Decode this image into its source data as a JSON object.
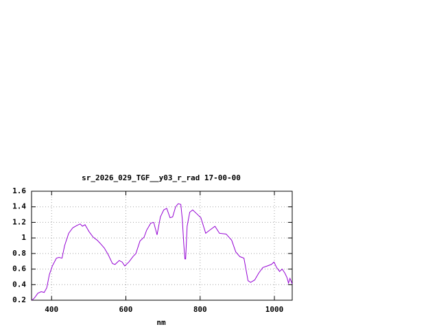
{
  "chart_data": {
    "type": "line",
    "title": "sr_2026_029_TGF__y03_r_rad 17-00-00",
    "x_label": "nm",
    "x": [
      347,
      354,
      363,
      372,
      380,
      387,
      394,
      402,
      413,
      420,
      428,
      435,
      446,
      457,
      468,
      477,
      483,
      490,
      501,
      512,
      523,
      531,
      542,
      553,
      564,
      571,
      582,
      590,
      597,
      608,
      619,
      627,
      638,
      649,
      656,
      667,
      675,
      684,
      693,
      702,
      710,
      719,
      726,
      734,
      741,
      748,
      752,
      756,
      759,
      761,
      765,
      772,
      780,
      791,
      802,
      815,
      826,
      840,
      852,
      870,
      885,
      896,
      907,
      918,
      929,
      936,
      947,
      958,
      969,
      981,
      992,
      999,
      1006,
      1014,
      1021,
      1028,
      1034,
      1038,
      1042,
      1048
    ],
    "series": [
      {
        "color": "#9400d3",
        "values": [
          0.2,
          0.23,
          0.29,
          0.31,
          0.3,
          0.36,
          0.53,
          0.64,
          0.74,
          0.75,
          0.74,
          0.9,
          1.06,
          1.13,
          1.16,
          1.18,
          1.15,
          1.17,
          1.08,
          1.01,
          0.97,
          0.93,
          0.87,
          0.78,
          0.67,
          0.66,
          0.71,
          0.69,
          0.64,
          0.69,
          0.76,
          0.8,
          0.96,
          1.01,
          1.1,
          1.19,
          1.2,
          1.04,
          1.27,
          1.36,
          1.38,
          1.26,
          1.27,
          1.4,
          1.44,
          1.43,
          1.24,
          0.92,
          0.73,
          0.73,
          1.15,
          1.33,
          1.36,
          1.31,
          1.26,
          1.06,
          1.1,
          1.15,
          1.06,
          1.05,
          0.97,
          0.82,
          0.76,
          0.74,
          0.45,
          0.43,
          0.46,
          0.55,
          0.62,
          0.64,
          0.66,
          0.69,
          0.62,
          0.57,
          0.6,
          0.55,
          0.49,
          0.42,
          0.48,
          0.41
        ]
      }
    ],
    "xlim": [
      346,
      1048
    ],
    "xticks": [
      400,
      600,
      800,
      1000
    ],
    "ylim": [
      0.2,
      1.6
    ],
    "yticks": [
      0.2,
      0.4,
      0.6,
      0.8,
      1,
      1.2,
      1.4,
      1.6
    ],
    "grid": true
  }
}
